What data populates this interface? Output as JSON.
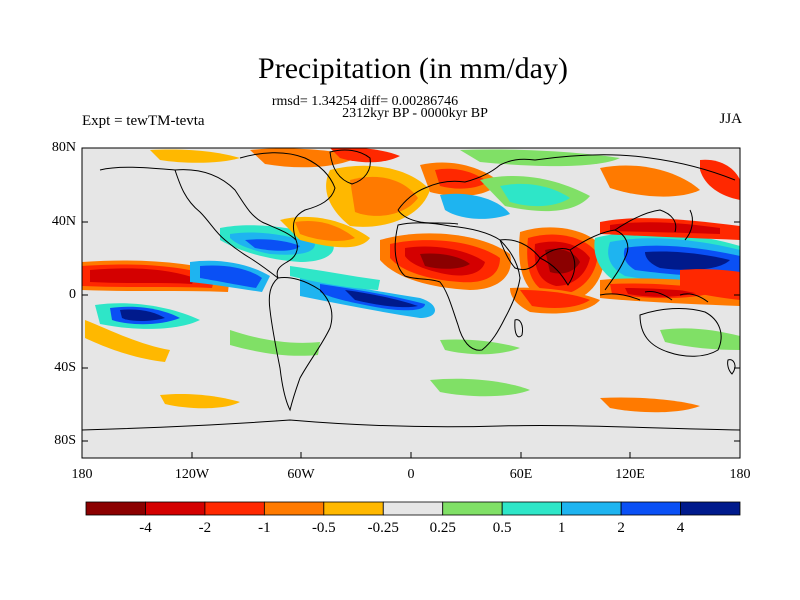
{
  "title": "Precipitation (in mm/day)",
  "stats_line": "rmsd= 1.34254  diff= 0.00286746",
  "period_line": "2312kyr BP - 0000kyr BP",
  "experiment_label": "Expt = tewTM-tevta",
  "season": "JJA",
  "lat_ticks": [
    "80N",
    "40N",
    "0",
    "40S",
    "80S"
  ],
  "lon_ticks": [
    "180",
    "120W",
    "60W",
    "0",
    "60E",
    "120E",
    "180"
  ],
  "colorbar": {
    "labels": [
      "-4",
      "-2",
      "-1",
      "-0.5",
      "-0.25",
      "0.25",
      "0.5",
      "1",
      "2",
      "4"
    ],
    "colors": [
      "#8b0000",
      "#d40000",
      "#ff2800",
      "#ff7a00",
      "#ffb800",
      "#e6e6e6",
      "#80e066",
      "#2ee6c8",
      "#1eb4f0",
      "#0a50f5",
      "#001a8c"
    ]
  },
  "colors": {
    "land_outline": "#000000",
    "ocean_background": "#e6e6e6"
  }
}
